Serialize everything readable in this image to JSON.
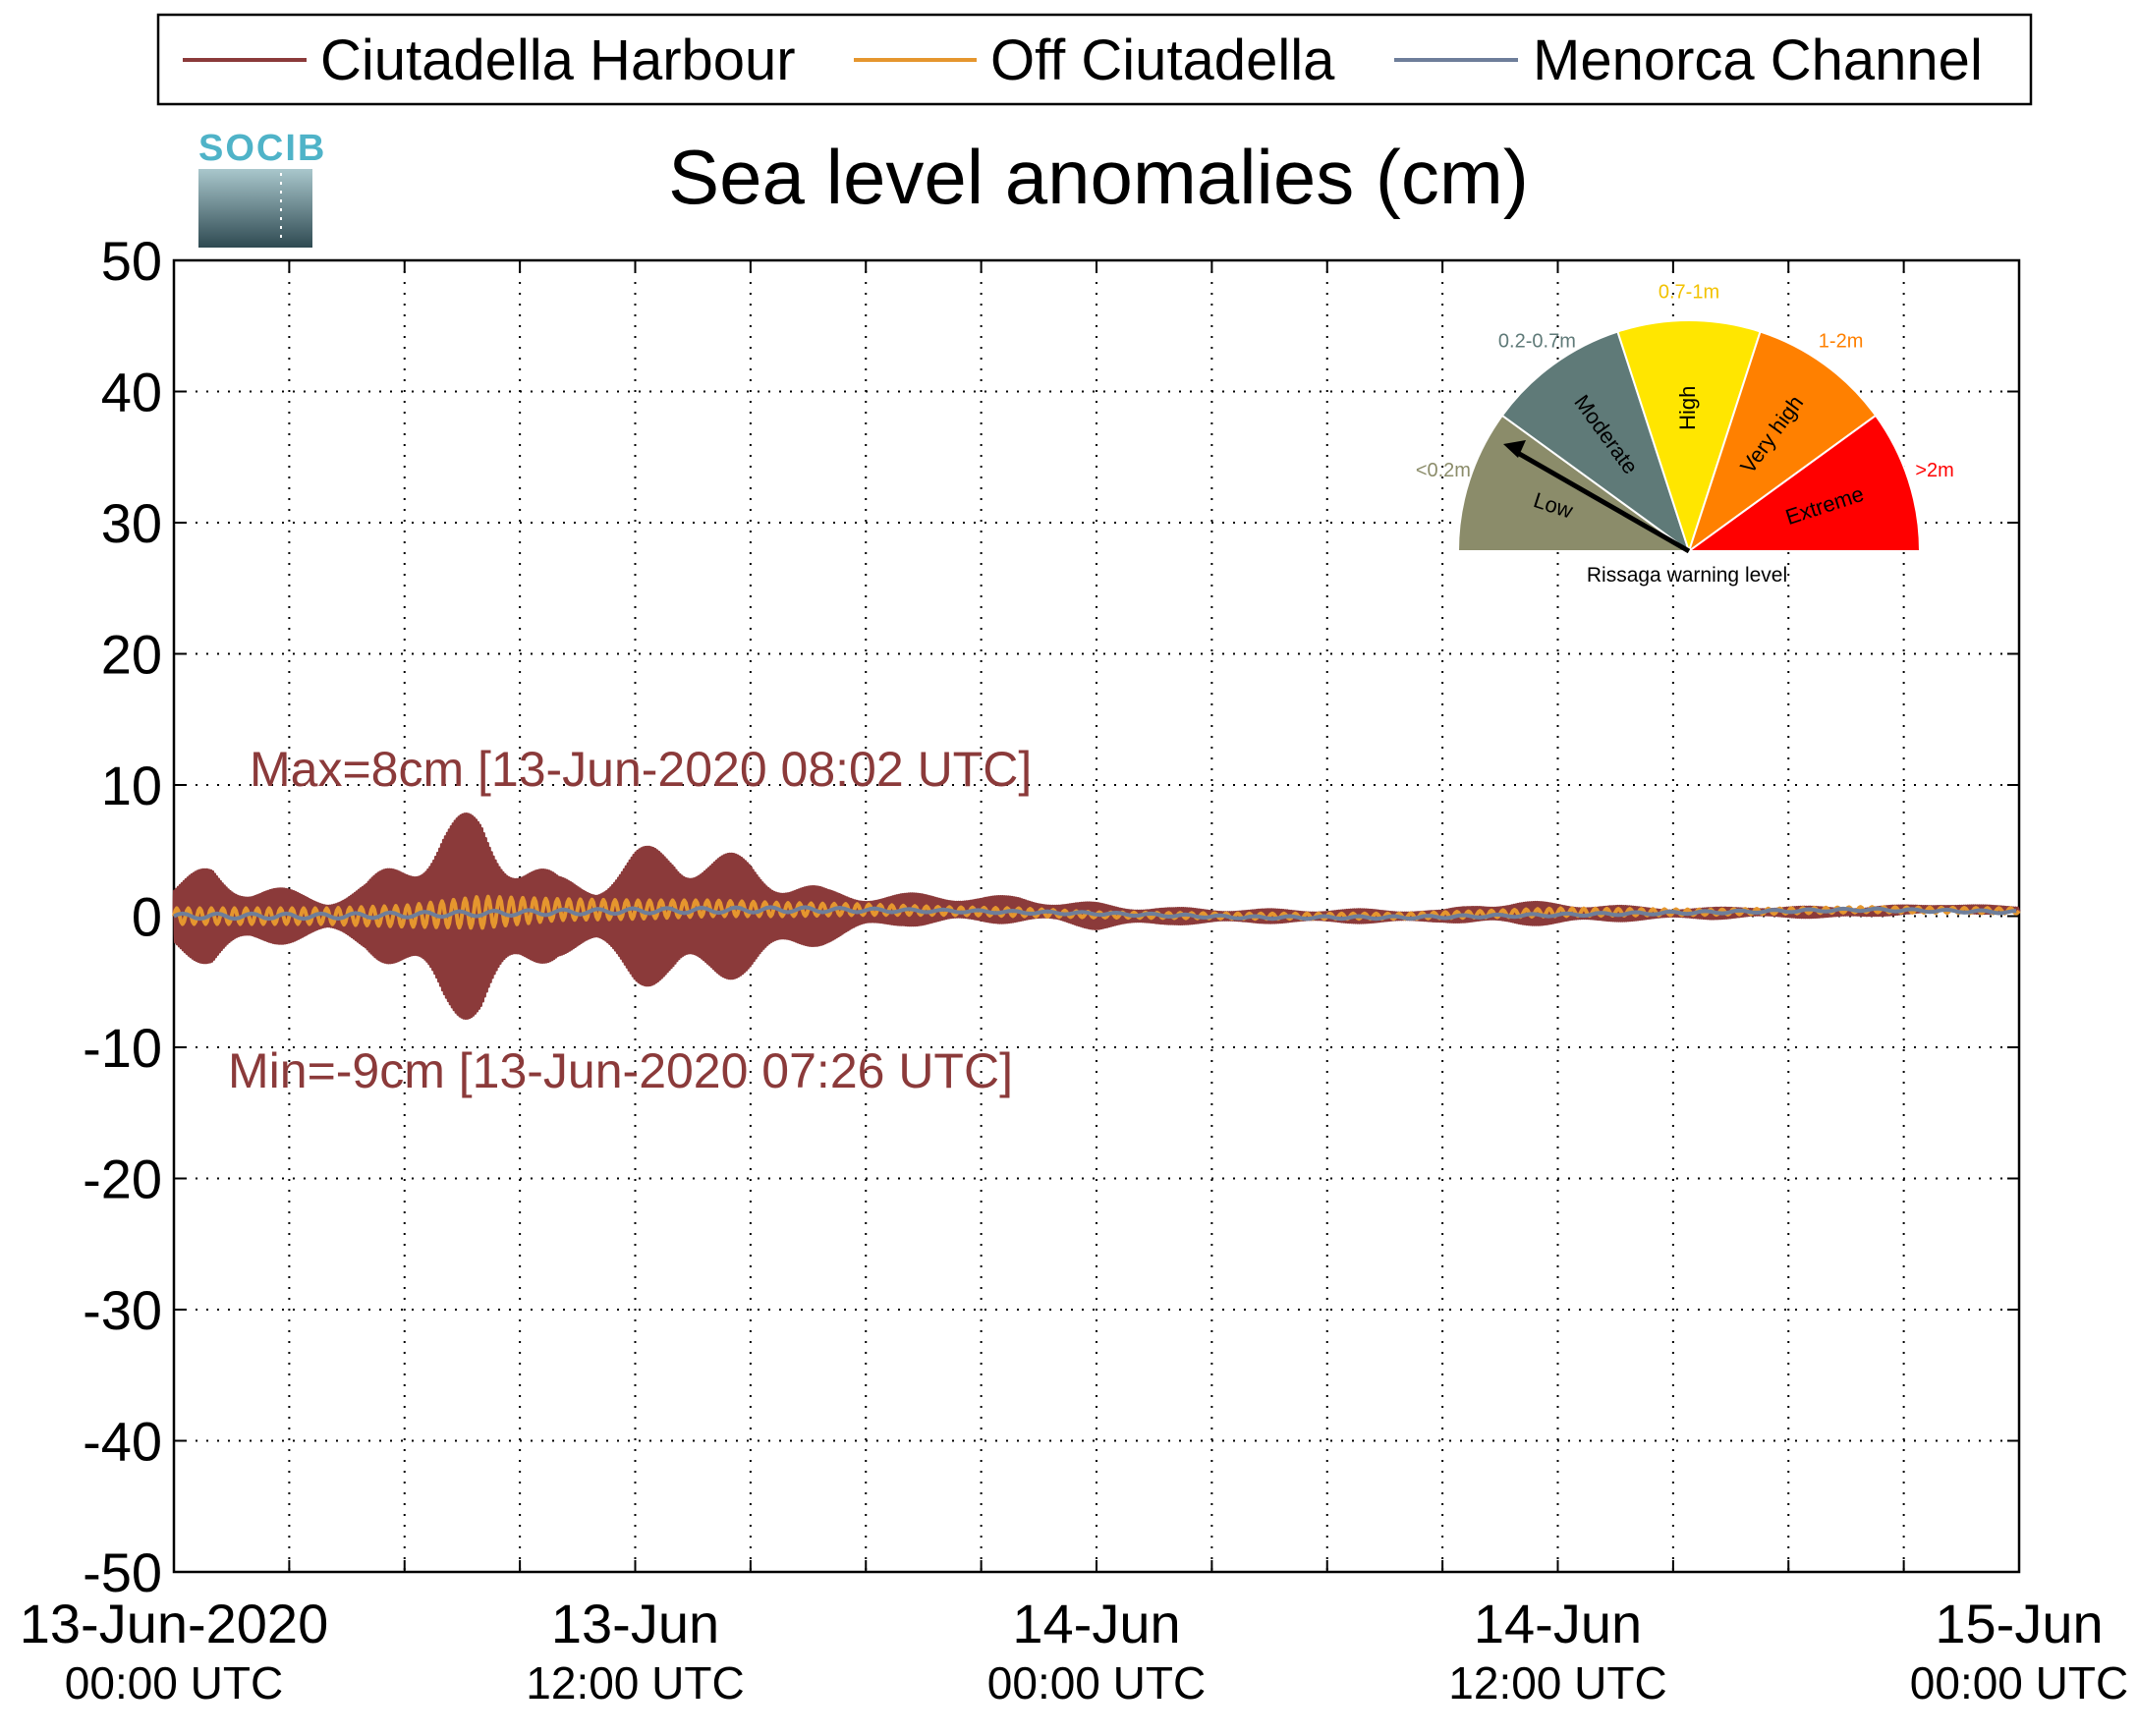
{
  "chart_data": {
    "type": "line",
    "title": "Sea level anomalies (cm)",
    "xlabel": "",
    "ylabel": "",
    "ylim": [
      -50,
      50
    ],
    "yticks": [
      50,
      40,
      30,
      20,
      10,
      0,
      -10,
      -20,
      -30,
      -40,
      -50
    ],
    "xlim": [
      "13-Jun-2020 00:00 UTC",
      "15-Jun-2020 00:00 UTC"
    ],
    "grid": true,
    "xticks": [
      {
        "line1": "13-Jun-2020",
        "line2": "00:00 UTC",
        "hours": 0
      },
      {
        "line1": "13-Jun",
        "line2": "12:00 UTC",
        "hours": 12
      },
      {
        "line1": "14-Jun",
        "line2": "00:00 UTC",
        "hours": 24
      },
      {
        "line1": "14-Jun",
        "line2": "12:00 UTC",
        "hours": 36
      },
      {
        "line1": "15-Jun",
        "line2": "00:00 UTC",
        "hours": 48
      }
    ],
    "legend_position": "top",
    "series": [
      {
        "name": "Ciutadella Harbour",
        "color": "#8b3a3a",
        "x_hours": [
          0,
          1,
          2,
          3,
          4,
          5,
          6,
          7,
          8,
          9,
          10,
          11,
          12,
          13,
          14,
          15,
          16,
          17,
          18,
          19,
          20,
          21,
          22,
          23,
          24,
          25,
          26,
          27,
          28,
          29,
          30,
          31,
          32,
          33,
          34,
          35,
          36,
          37,
          38,
          39,
          40,
          41,
          42,
          43,
          44,
          45,
          46,
          47,
          48
        ],
        "envelope_cm": [
          2.5,
          4,
          2.5,
          2,
          1.5,
          2.5,
          5,
          7.5,
          8,
          5,
          3,
          3,
          5,
          6,
          5,
          4.5,
          3,
          2,
          1.5,
          1.2,
          1.2,
          1,
          1,
          0.8,
          1,
          0.8,
          0.6,
          0.6,
          0.5,
          0.5,
          0.5,
          0.5,
          0.5,
          0.4,
          0.8,
          0.9,
          0.8,
          0.7,
          0.5,
          0.4,
          0.4,
          0.4,
          0.4,
          0.4,
          0.4,
          0.3,
          0.3,
          0.3,
          0.2
        ],
        "mean_cm": [
          0,
          0,
          0,
          0,
          0,
          0,
          0,
          0,
          0,
          0,
          0,
          0,
          0,
          0,
          0,
          0,
          0,
          0,
          0.3,
          0.5,
          0.5,
          0.5,
          0.5,
          0.3,
          0,
          0,
          0,
          0,
          0,
          0,
          0,
          0,
          0,
          0,
          0.2,
          0.2,
          0.2,
          0.2,
          0.2,
          0.2,
          0.2,
          0.3,
          0.3,
          0.3,
          0.3,
          0.5,
          0.6,
          0.5,
          0.5
        ]
      },
      {
        "name": "Off Ciutadella",
        "color": "#e5962e",
        "x_hours": [
          0,
          2,
          4,
          6,
          8,
          10,
          12,
          14,
          16,
          18,
          20,
          22,
          24,
          28,
          32,
          36,
          40,
          44,
          48
        ],
        "envelope_cm": [
          0.6,
          0.6,
          0.6,
          0.8,
          1.2,
          0.8,
          0.7,
          0.6,
          0.5,
          0.4,
          0.3,
          0.3,
          0.2,
          0.2,
          0.2,
          0.3,
          0.2,
          0.2,
          0.2
        ],
        "mean_cm": [
          0,
          0,
          0,
          0,
          0.3,
          0.5,
          0.5,
          0.6,
          0.5,
          0.5,
          0.4,
          0.3,
          0.1,
          0,
          0,
          0.3,
          0.3,
          0.5,
          0.4
        ]
      },
      {
        "name": "Menorca Channel",
        "color": "#6e7e9a",
        "x_hours": [
          0,
          4,
          8,
          12,
          16,
          20,
          24,
          28,
          32,
          36,
          40,
          44,
          48
        ],
        "envelope_cm": [
          0.2,
          0.2,
          0.2,
          0.2,
          0.2,
          0.1,
          0.1,
          0.1,
          0.1,
          0.1,
          0.1,
          0.1,
          0.1
        ],
        "mean_cm": [
          0,
          0,
          0.2,
          0.4,
          0.5,
          0.4,
          0.2,
          -0.1,
          -0.1,
          0.1,
          0.3,
          0.5,
          0.3
        ]
      }
    ],
    "annotations": [
      {
        "text": "Max=8cm [13-Jun-2020 08:02 UTC]",
        "value_cm": 8,
        "time": "13-Jun-2020 08:02 UTC"
      },
      {
        "text": "Min=-9cm [13-Jun-2020 07:26 UTC]",
        "value_cm": -9,
        "time": "13-Jun-2020 07:26 UTC"
      }
    ]
  },
  "logo": {
    "text": "SOCIB"
  },
  "gauge": {
    "caption": "Rissaga warning level",
    "current_level": "Low",
    "segments": [
      {
        "label": "Low",
        "range": "<0.2m",
        "color": "#8b8c6a"
      },
      {
        "label": "Moderate",
        "range": "0.2-0.7m",
        "color": "#5f7a78"
      },
      {
        "label": "High",
        "range": "0.7-1m",
        "color": "#ffe600"
      },
      {
        "label": "Very high",
        "range": "1-2m",
        "color": "#ff8000"
      },
      {
        "label": "Extreme",
        "range": ">2m",
        "color": "#ff0000"
      }
    ]
  }
}
